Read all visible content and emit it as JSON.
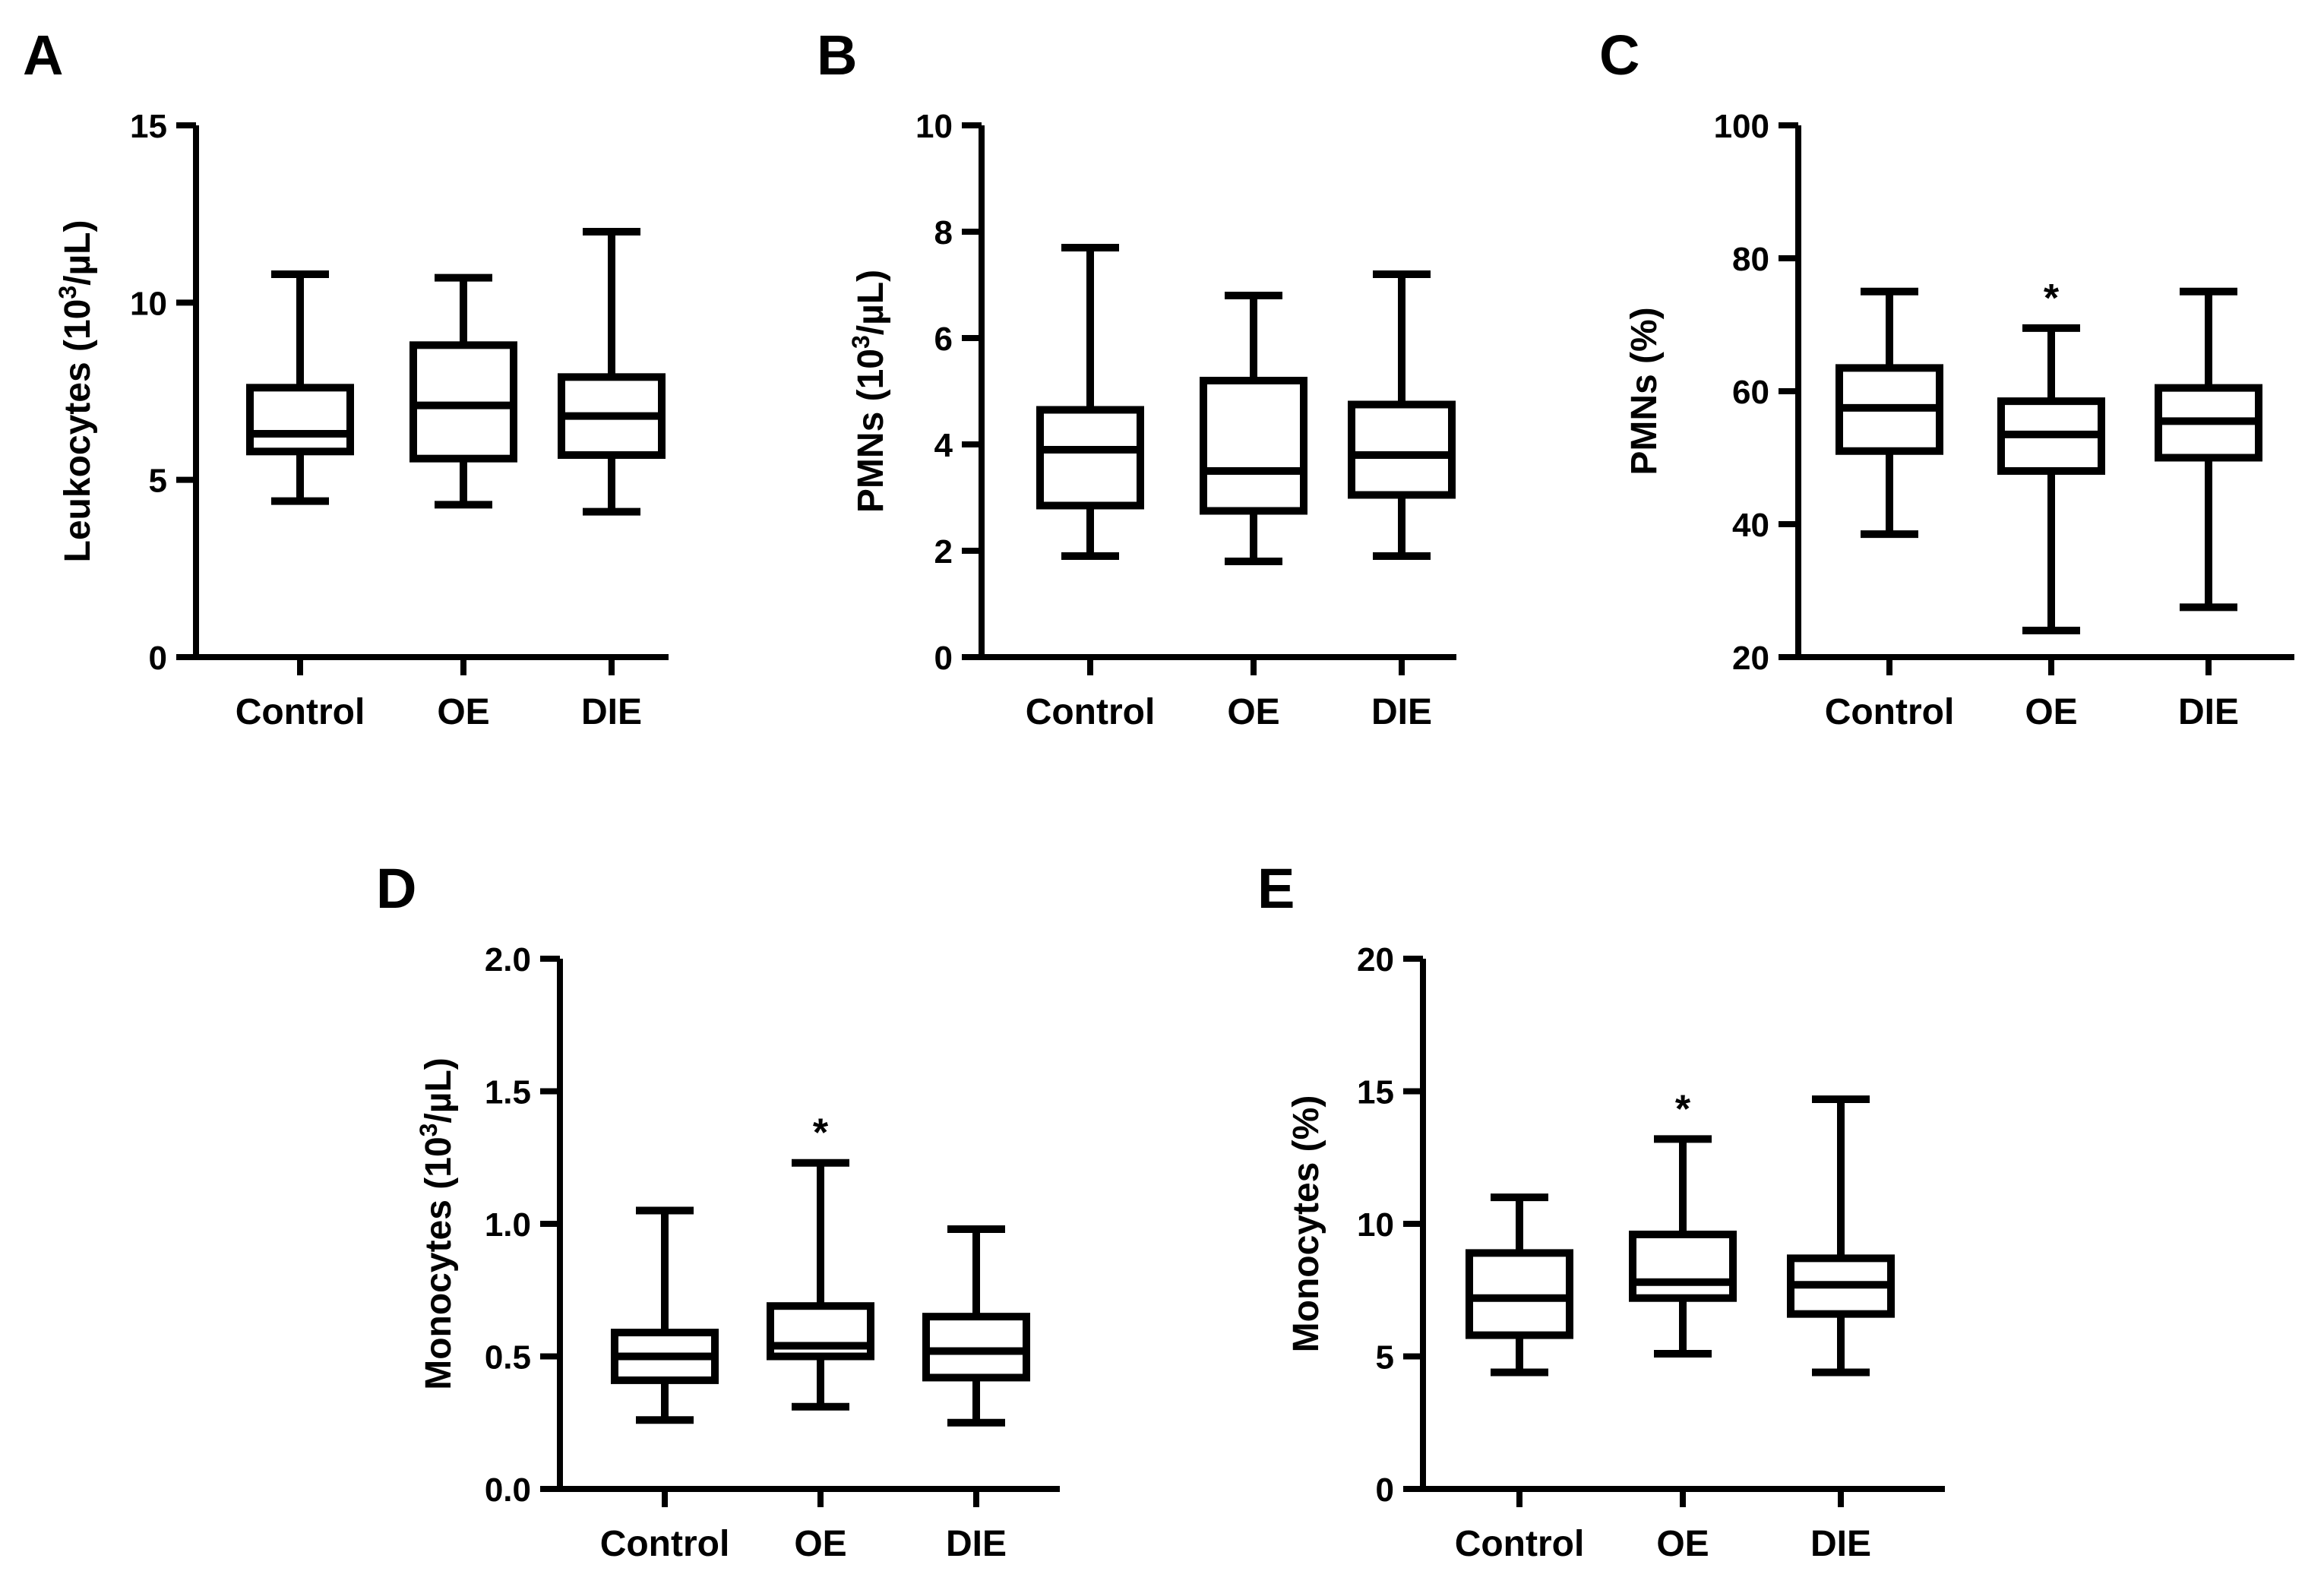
{
  "chart_data": [
    {
      "panel": "A",
      "type": "boxplot",
      "ylabel": "Leukocytes (10",
      "ylabel_sup": "3",
      "ylabel_tail": "/µL)",
      "ylim": [
        0,
        15
      ],
      "yticks": [
        "0",
        "5",
        "10",
        "15"
      ],
      "ytick_values": [
        0,
        5,
        10,
        15
      ],
      "categories": [
        "Control",
        "OE",
        "DIE"
      ],
      "boxes": [
        {
          "min": 4.4,
          "q1": 5.8,
          "median": 6.3,
          "q3": 7.6,
          "max": 10.8,
          "sig": ""
        },
        {
          "min": 4.3,
          "q1": 5.6,
          "median": 7.1,
          "q3": 8.8,
          "max": 10.7,
          "sig": ""
        },
        {
          "min": 4.1,
          "q1": 5.7,
          "median": 6.8,
          "q3": 7.9,
          "max": 12.0,
          "sig": ""
        }
      ]
    },
    {
      "panel": "B",
      "type": "boxplot",
      "ylabel": "PMNs (10",
      "ylabel_sup": "3",
      "ylabel_tail": "/µL)",
      "ylim": [
        0,
        10
      ],
      "yticks": [
        "0",
        "2",
        "4",
        "6",
        "8",
        "10"
      ],
      "ytick_values": [
        0,
        2,
        4,
        6,
        8,
        10
      ],
      "categories": [
        "Control",
        "OE",
        "DIE"
      ],
      "boxes": [
        {
          "min": 1.9,
          "q1": 2.85,
          "median": 3.9,
          "q3": 4.65,
          "max": 7.7,
          "sig": ""
        },
        {
          "min": 1.8,
          "q1": 2.75,
          "median": 3.5,
          "q3": 5.2,
          "max": 6.8,
          "sig": ""
        },
        {
          "min": 1.9,
          "q1": 3.05,
          "median": 3.8,
          "q3": 4.75,
          "max": 7.2,
          "sig": ""
        }
      ]
    },
    {
      "panel": "C",
      "type": "boxplot",
      "ylabel": "PMNs (%)",
      "ylabel_sup": "",
      "ylabel_tail": "",
      "ylim": [
        20,
        100
      ],
      "yticks": [
        "20",
        "40",
        "60",
        "80",
        "100"
      ],
      "ytick_values": [
        20,
        40,
        60,
        80,
        100
      ],
      "categories": [
        "Control",
        "OE",
        "DIE"
      ],
      "boxes": [
        {
          "min": 38.5,
          "q1": 51,
          "median": 57.5,
          "q3": 63.5,
          "max": 75,
          "sig": ""
        },
        {
          "min": 24,
          "q1": 48,
          "median": 53.5,
          "q3": 58.5,
          "max": 69.5,
          "sig": "*"
        },
        {
          "min": 27.5,
          "q1": 50,
          "median": 55.5,
          "q3": 60.5,
          "max": 75,
          "sig": ""
        }
      ]
    },
    {
      "panel": "D",
      "type": "boxplot",
      "ylabel": "Monocytes (10",
      "ylabel_sup": "3",
      "ylabel_tail": "/µL)",
      "ylim": [
        0,
        2
      ],
      "yticks": [
        "0.0",
        "0.5",
        "1.0",
        "1.5",
        "2.0"
      ],
      "ytick_values": [
        0,
        0.5,
        1.0,
        1.5,
        2.0
      ],
      "categories": [
        "Control",
        "OE",
        "DIE"
      ],
      "boxes": [
        {
          "min": 0.26,
          "q1": 0.41,
          "median": 0.5,
          "q3": 0.59,
          "max": 1.05,
          "sig": ""
        },
        {
          "min": 0.31,
          "q1": 0.5,
          "median": 0.54,
          "q3": 0.69,
          "max": 1.23,
          "sig": "*"
        },
        {
          "min": 0.25,
          "q1": 0.42,
          "median": 0.52,
          "q3": 0.65,
          "max": 0.98,
          "sig": ""
        }
      ]
    },
    {
      "panel": "E",
      "type": "boxplot",
      "ylabel": "Monocytes (%)",
      "ylabel_sup": "",
      "ylabel_tail": "",
      "ylim": [
        0,
        20
      ],
      "yticks": [
        "0",
        "5",
        "10",
        "15",
        "20"
      ],
      "ytick_values": [
        0,
        5,
        10,
        15,
        20
      ],
      "categories": [
        "Control",
        "OE",
        "DIE"
      ],
      "boxes": [
        {
          "min": 4.4,
          "q1": 5.8,
          "median": 7.2,
          "q3": 8.9,
          "max": 11.0,
          "sig": ""
        },
        {
          "min": 5.1,
          "q1": 7.2,
          "median": 7.8,
          "q3": 9.6,
          "max": 13.2,
          "sig": "*"
        },
        {
          "min": 4.4,
          "q1": 6.6,
          "median": 7.7,
          "q3": 8.7,
          "max": 14.7,
          "sig": ""
        }
      ]
    }
  ]
}
